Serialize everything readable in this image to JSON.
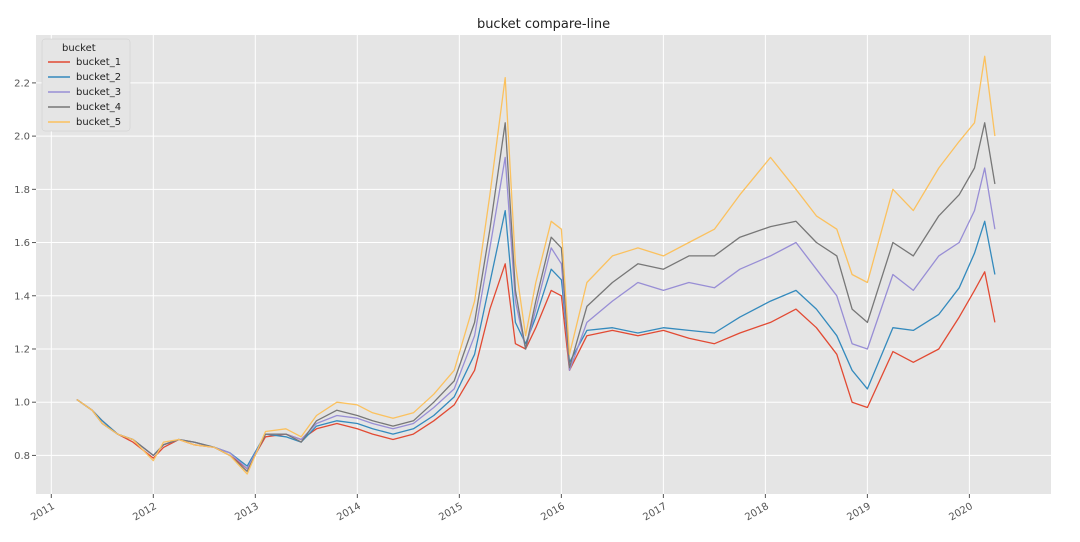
{
  "chart_data": {
    "type": "line",
    "title": "bucket compare-line",
    "xlabel": "",
    "ylabel": "",
    "xlim": [
      2010.85,
      2020.8
    ],
    "ylim": [
      0.655,
      2.38
    ],
    "grid": true,
    "legend": {
      "title": "bucket",
      "placement": "top-left"
    },
    "x_ticks": [
      {
        "value": 2011,
        "label": "2011"
      },
      {
        "value": 2012,
        "label": "2012"
      },
      {
        "value": 2013,
        "label": "2013"
      },
      {
        "value": 2014,
        "label": "2014"
      },
      {
        "value": 2015,
        "label": "2015"
      },
      {
        "value": 2016,
        "label": "2016"
      },
      {
        "value": 2017,
        "label": "2017"
      },
      {
        "value": 2018,
        "label": "2018"
      },
      {
        "value": 2019,
        "label": "2019"
      },
      {
        "value": 2020,
        "label": "2020"
      }
    ],
    "y_ticks": [
      {
        "value": 0.8,
        "label": "0.8"
      },
      {
        "value": 1.0,
        "label": "1.0"
      },
      {
        "value": 1.2,
        "label": "1.2"
      },
      {
        "value": 1.4,
        "label": "1.4"
      },
      {
        "value": 1.6,
        "label": "1.6"
      },
      {
        "value": 1.8,
        "label": "1.8"
      },
      {
        "value": 2.0,
        "label": "2.0"
      },
      {
        "value": 2.2,
        "label": "2.2"
      }
    ],
    "x": [
      2011.25,
      2011.4,
      2011.5,
      2011.65,
      2011.8,
      2012.0,
      2012.1,
      2012.25,
      2012.4,
      2012.6,
      2012.75,
      2012.92,
      2013.1,
      2013.3,
      2013.45,
      2013.6,
      2013.8,
      2014.0,
      2014.15,
      2014.35,
      2014.55,
      2014.75,
      2014.95,
      2015.15,
      2015.3,
      2015.45,
      2015.55,
      2015.65,
      2015.75,
      2015.9,
      2016.0,
      2016.08,
      2016.25,
      2016.5,
      2016.75,
      2017.0,
      2017.25,
      2017.5,
      2017.75,
      2018.05,
      2018.3,
      2018.5,
      2018.7,
      2018.85,
      2019.0,
      2019.25,
      2019.45,
      2019.7,
      2019.9,
      2020.05,
      2020.15,
      2020.25
    ],
    "series": [
      {
        "name": "bucket_1",
        "color": "#E24A33",
        "values": [
          1.01,
          0.97,
          0.93,
          0.88,
          0.85,
          0.79,
          0.83,
          0.86,
          0.84,
          0.83,
          0.8,
          0.75,
          0.87,
          0.88,
          0.86,
          0.9,
          0.92,
          0.9,
          0.88,
          0.86,
          0.88,
          0.93,
          0.99,
          1.12,
          1.35,
          1.52,
          1.22,
          1.2,
          1.28,
          1.42,
          1.4,
          1.12,
          1.25,
          1.27,
          1.25,
          1.27,
          1.24,
          1.22,
          1.26,
          1.3,
          1.35,
          1.28,
          1.18,
          1.0,
          0.98,
          1.19,
          1.15,
          1.2,
          1.32,
          1.42,
          1.49,
          1.3
        ]
      },
      {
        "name": "bucket_2",
        "color": "#348ABD",
        "values": [
          1.01,
          0.97,
          0.93,
          0.88,
          0.86,
          0.8,
          0.84,
          0.86,
          0.85,
          0.83,
          0.81,
          0.76,
          0.88,
          0.87,
          0.85,
          0.91,
          0.93,
          0.92,
          0.9,
          0.88,
          0.9,
          0.95,
          1.02,
          1.18,
          1.45,
          1.72,
          1.3,
          1.22,
          1.32,
          1.5,
          1.46,
          1.15,
          1.27,
          1.28,
          1.26,
          1.28,
          1.27,
          1.26,
          1.32,
          1.38,
          1.42,
          1.35,
          1.25,
          1.12,
          1.05,
          1.28,
          1.27,
          1.33,
          1.43,
          1.56,
          1.68,
          1.48
        ]
      },
      {
        "name": "bucket_3",
        "color": "#988ED5",
        "values": [
          1.01,
          0.97,
          0.92,
          0.88,
          0.86,
          0.8,
          0.84,
          0.86,
          0.85,
          0.83,
          0.81,
          0.75,
          0.88,
          0.88,
          0.86,
          0.92,
          0.95,
          0.94,
          0.92,
          0.9,
          0.92,
          0.98,
          1.05,
          1.25,
          1.58,
          1.92,
          1.38,
          1.2,
          1.35,
          1.58,
          1.52,
          1.12,
          1.3,
          1.38,
          1.45,
          1.42,
          1.45,
          1.43,
          1.5,
          1.55,
          1.6,
          1.5,
          1.4,
          1.22,
          1.2,
          1.48,
          1.42,
          1.55,
          1.6,
          1.72,
          1.88,
          1.65
        ]
      },
      {
        "name": "bucket_4",
        "color": "#777777",
        "values": [
          1.01,
          0.97,
          0.92,
          0.88,
          0.86,
          0.8,
          0.84,
          0.86,
          0.85,
          0.83,
          0.8,
          0.74,
          0.88,
          0.88,
          0.85,
          0.93,
          0.97,
          0.95,
          0.93,
          0.91,
          0.93,
          1.0,
          1.08,
          1.3,
          1.65,
          2.05,
          1.42,
          1.2,
          1.38,
          1.62,
          1.58,
          1.13,
          1.36,
          1.45,
          1.52,
          1.5,
          1.55,
          1.55,
          1.62,
          1.66,
          1.68,
          1.6,
          1.55,
          1.35,
          1.3,
          1.6,
          1.55,
          1.7,
          1.78,
          1.88,
          2.05,
          1.82
        ]
      },
      {
        "name": "bucket_5",
        "color": "#FBC15E",
        "values": [
          1.01,
          0.97,
          0.92,
          0.88,
          0.86,
          0.78,
          0.85,
          0.86,
          0.84,
          0.83,
          0.8,
          0.73,
          0.89,
          0.9,
          0.87,
          0.95,
          1.0,
          0.99,
          0.96,
          0.94,
          0.96,
          1.03,
          1.12,
          1.38,
          1.78,
          2.22,
          1.52,
          1.25,
          1.45,
          1.68,
          1.65,
          1.18,
          1.45,
          1.55,
          1.58,
          1.55,
          1.6,
          1.65,
          1.78,
          1.92,
          1.8,
          1.7,
          1.65,
          1.48,
          1.45,
          1.8,
          1.72,
          1.88,
          1.98,
          2.05,
          2.3,
          2.0
        ]
      }
    ]
  }
}
